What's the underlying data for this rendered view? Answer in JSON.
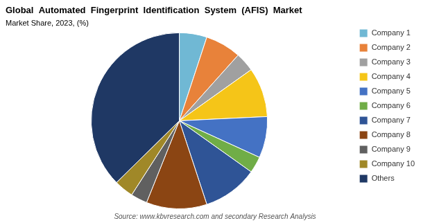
{
  "chart_data": {
    "type": "pie",
    "title": "Global  Automated  Fingerprint  Identification  System  (AFIS)  Market",
    "subtitle": "Market Share, 2023, (%)",
    "annotations": [
      "Source: www.kbvresearch.com and secondary Research Analysis"
    ],
    "categories": [
      "Company 1",
      "Company 2",
      "Company 3",
      "Company 4",
      "Company 5",
      "Company 6",
      "Company 7",
      "Company 8",
      "Company 9",
      "Company 10",
      "Others"
    ],
    "values": [
      5.0,
      6.5,
      3.5,
      9.0,
      7.5,
      3.0,
      10.0,
      11.0,
      3.0,
      3.5,
      37.0
    ],
    "colors": [
      "#70B8D4",
      "#E8823A",
      "#A0A0A0",
      "#F5C518",
      "#4472C4",
      "#70AD47",
      "#2F5496",
      "#8B4513",
      "#606060",
      "#A08828",
      "#1F3864"
    ],
    "legend": "right"
  }
}
